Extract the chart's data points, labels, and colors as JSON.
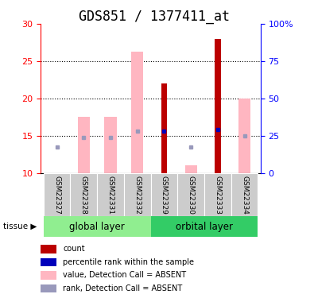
{
  "title": "GDS851 / 1377411_at",
  "samples": [
    "GSM22327",
    "GSM22328",
    "GSM22331",
    "GSM22332",
    "GSM22329",
    "GSM22330",
    "GSM22333",
    "GSM22334"
  ],
  "bar_bottom": 10,
  "value_bars": {
    "GSM22327": null,
    "GSM22328": 17.5,
    "GSM22331": 17.5,
    "GSM22332": 26.3,
    "GSM22329": null,
    "GSM22330": 11.0,
    "GSM22333": null,
    "GSM22334": 20.0
  },
  "count_bars": {
    "GSM22327": null,
    "GSM22328": null,
    "GSM22331": null,
    "GSM22332": null,
    "GSM22329": 22.0,
    "GSM22330": null,
    "GSM22333": 28.0,
    "GSM22334": null
  },
  "rank_squares": {
    "GSM22327": 13.5,
    "GSM22328": 14.8,
    "GSM22331": 14.8,
    "GSM22332": 15.6,
    "GSM22329": 15.6,
    "GSM22330": 13.5,
    "GSM22333": 15.8,
    "GSM22334": 15.0
  },
  "blue_squares": [
    "GSM22329",
    "GSM22333"
  ],
  "ylim": [
    10,
    30
  ],
  "yticks_left": [
    10,
    15,
    20,
    25,
    30
  ],
  "yticks_right": [
    0,
    25,
    50,
    75,
    100
  ],
  "yticks_right_labels": [
    "0",
    "25",
    "50",
    "75",
    "100%"
  ],
  "color_pink_bar": "#FFB6C1",
  "color_dark_red": "#BB0000",
  "color_blue_square": "#0000BB",
  "color_light_blue_square": "#9999BB",
  "color_group_global": "#90EE90",
  "color_group_orbital": "#33CC66",
  "color_sample_bg": "#CCCCCC",
  "title_fontsize": 12,
  "bar_width": 0.45,
  "count_bar_width": 0.22
}
